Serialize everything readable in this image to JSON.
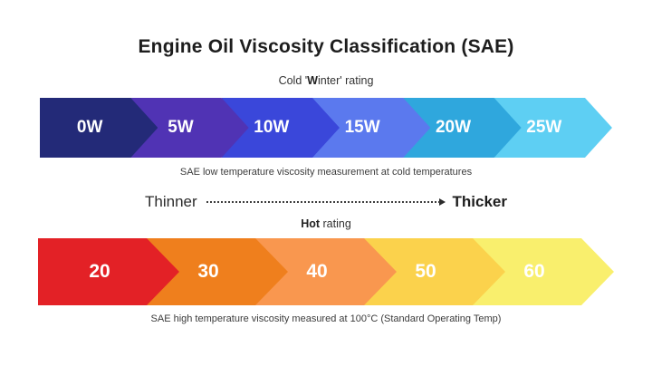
{
  "title": "Engine Oil Viscosity Classification (SAE)",
  "cold_section": {
    "rating_label": {
      "prefix": "Cold '",
      "bold": "W",
      "suffix": "inter' rating"
    },
    "caption": "SAE low temperature viscosity measurement at cold temperatures",
    "segments": [
      {
        "label": "0W",
        "color": "#232a78"
      },
      {
        "label": "5W",
        "color": "#5033b4"
      },
      {
        "label": "10W",
        "color": "#3a47da"
      },
      {
        "label": "15W",
        "color": "#5b79ee"
      },
      {
        "label": "20W",
        "color": "#2fa7dd"
      },
      {
        "label": "25W",
        "color": "#5ecff3"
      }
    ]
  },
  "flow_indicator": {
    "left": "Thinner",
    "right": "Thicker"
  },
  "hot_section": {
    "rating_label": {
      "prefix": "",
      "bold": "Hot",
      "suffix": " rating"
    },
    "caption": "SAE high temperature viscosity measured at 100°C (Standard Operating Temp)",
    "segments": [
      {
        "label": "20",
        "color": "#e32126"
      },
      {
        "label": "30",
        "color": "#ef7f1d"
      },
      {
        "label": "40",
        "color": "#f9974f"
      },
      {
        "label": "50",
        "color": "#fbd24c"
      },
      {
        "label": "60",
        "color": "#f9ef6d"
      }
    ]
  },
  "colors": {
    "background": "#ffffff",
    "title_text": "#1d1d1d",
    "caption_text": "#3b3b3b",
    "segment_label": "#ffffff"
  }
}
